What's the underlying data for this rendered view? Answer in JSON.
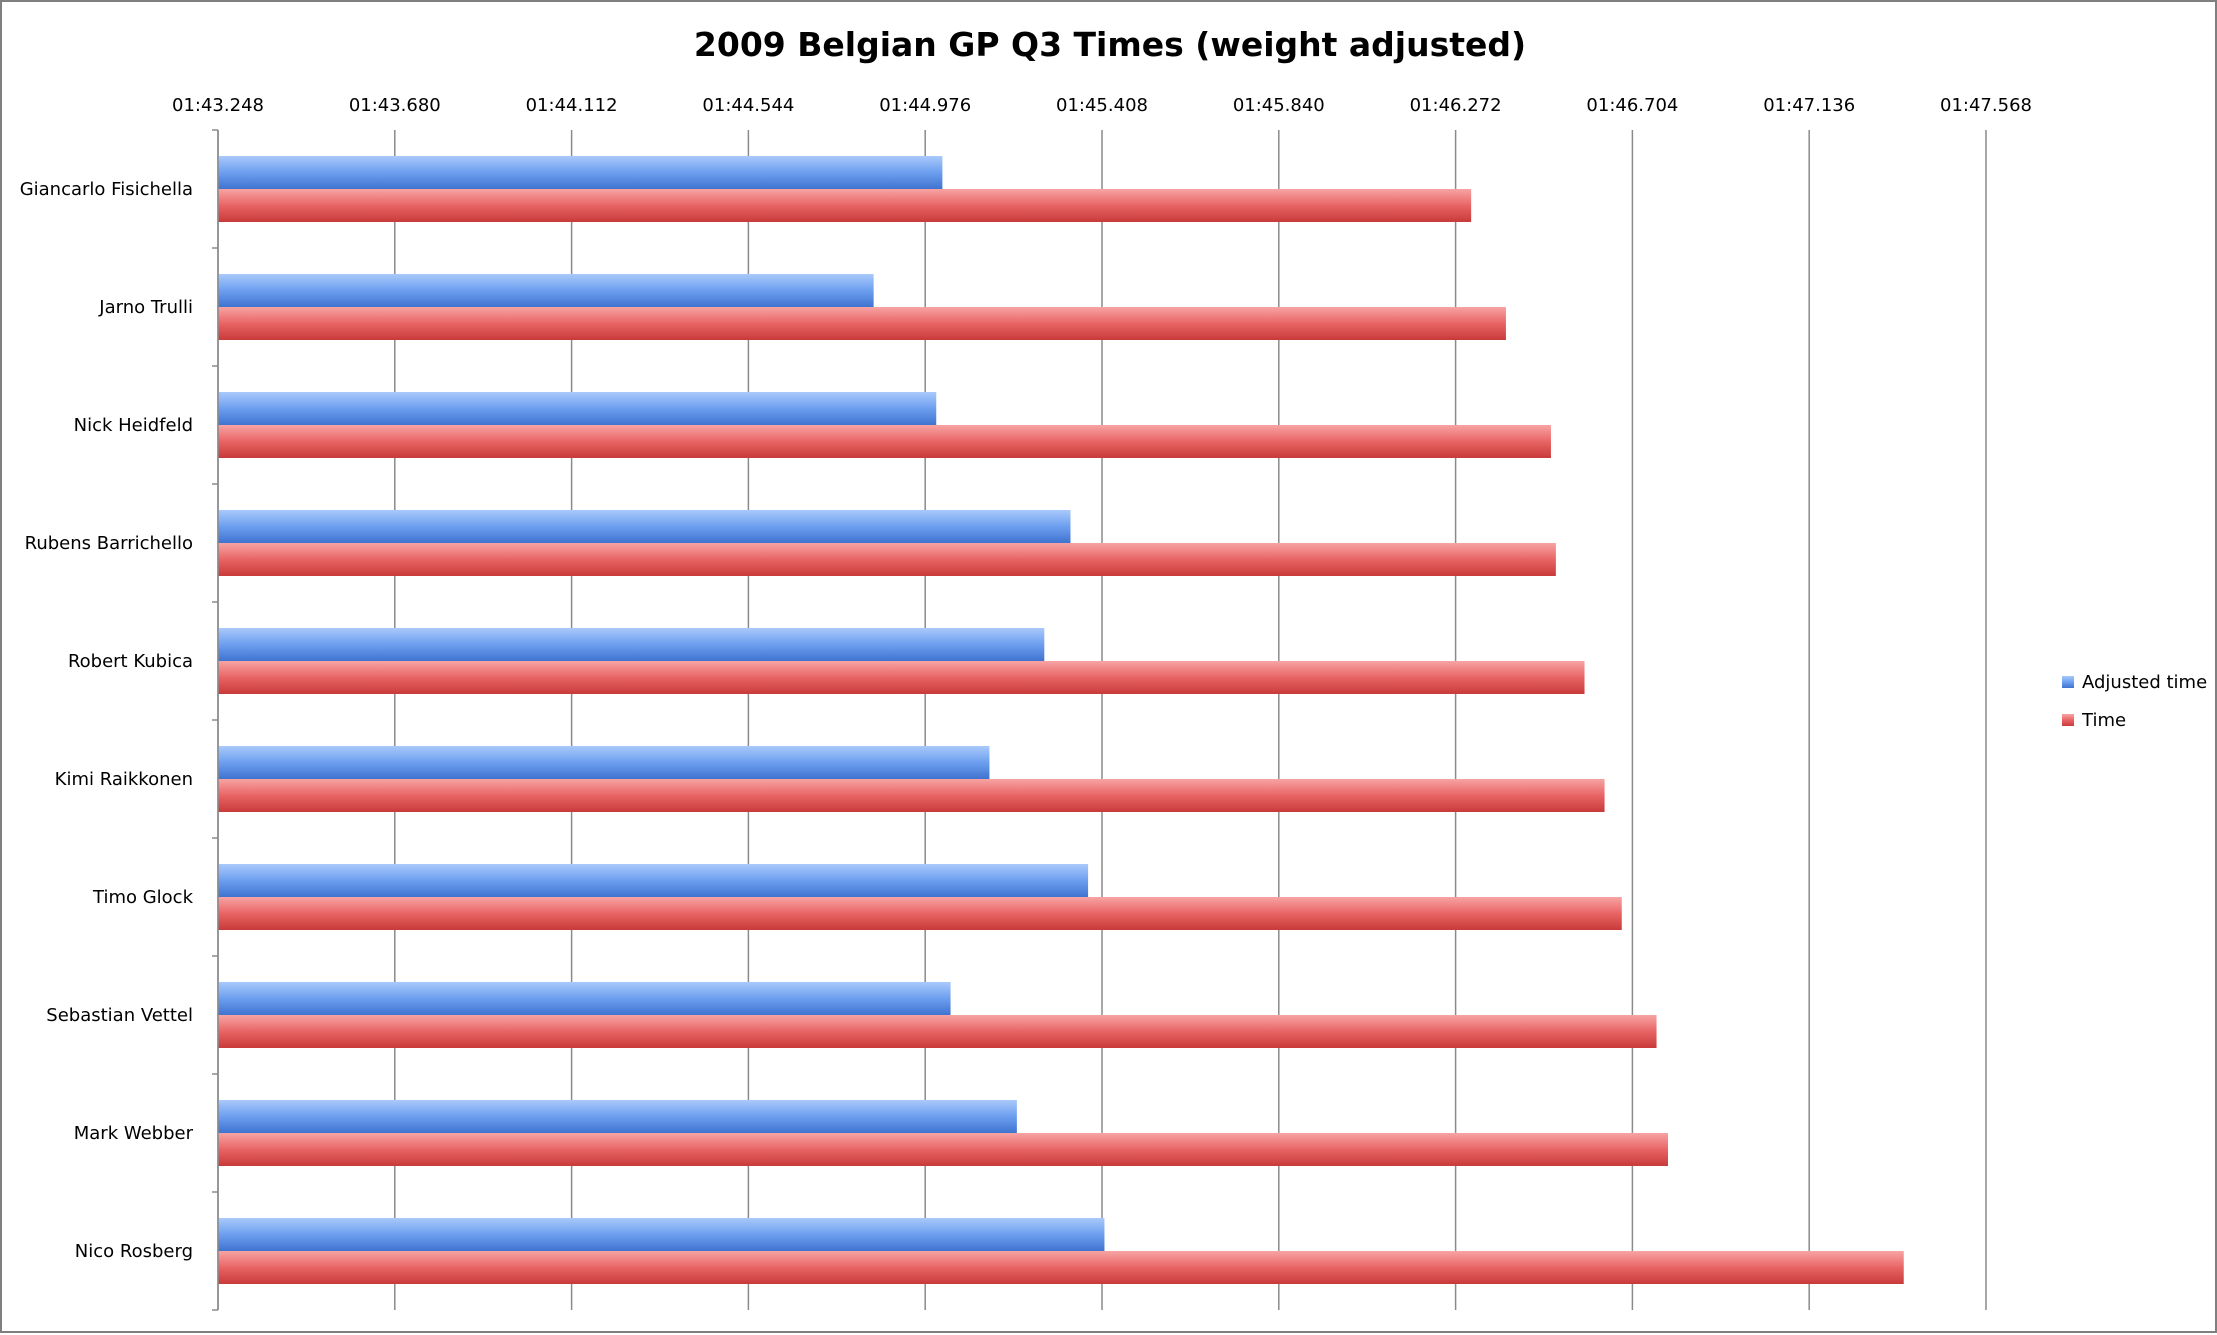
{
  "chart_data": {
    "type": "bar",
    "orientation": "horizontal",
    "title": "2009 Belgian GP Q3 Times (weight adjusted)",
    "xlabel": "",
    "ylabel": "",
    "x_axis_position": "top",
    "x_ticks": [
      "01:43.248",
      "01:43.680",
      "01:44.112",
      "01:44.544",
      "01:44.976",
      "01:45.408",
      "01:45.840",
      "01:46.272",
      "01:46.704",
      "01:47.136",
      "01:47.568"
    ],
    "xlim_seconds": [
      103.248,
      107.568
    ],
    "grid": "vertical",
    "legend_position": "right",
    "categories": [
      "Giancarlo Fisichella",
      "Jarno Trulli",
      "Nick Heidfeld",
      "Rubens Barrichello",
      "Robert Kubica",
      "Kimi Raikkonen",
      "Timo Glock",
      "Sebastian Vettel",
      "Mark Webber",
      "Nico Rosberg"
    ],
    "series": [
      {
        "name": "Adjusted time",
        "color": "#5b8fe0",
        "values_seconds": [
          105.018,
          104.85,
          105.003,
          105.331,
          105.267,
          105.133,
          105.374,
          105.038,
          105.2,
          105.414
        ]
      },
      {
        "name": "Time",
        "color": "#e05555",
        "values_seconds": [
          106.31,
          106.395,
          106.505,
          106.517,
          106.587,
          106.636,
          106.678,
          106.763,
          106.791,
          107.367
        ]
      }
    ]
  }
}
